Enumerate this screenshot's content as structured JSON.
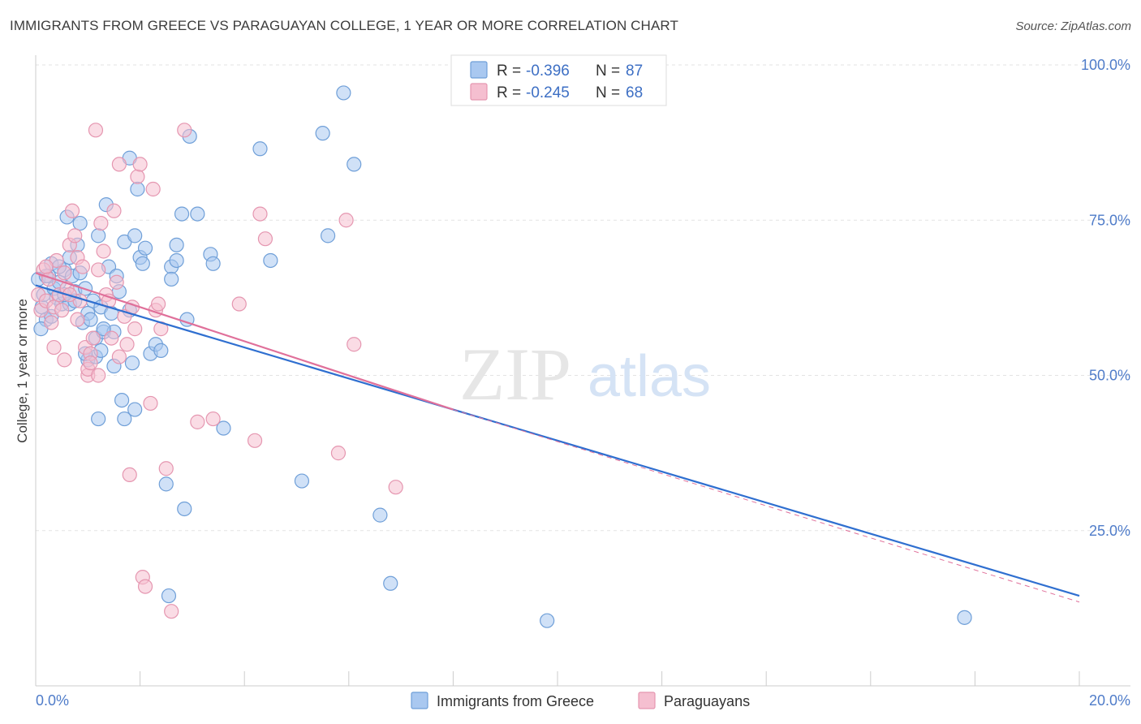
{
  "chart_data": {
    "type": "scatter",
    "title": "IMMIGRANTS FROM GREECE VS PARAGUAYAN COLLEGE, 1 YEAR OR MORE CORRELATION CHART",
    "source": "Source: ZipAtlas.com",
    "xlabel": "",
    "ylabel": "College, 1 year or more",
    "xlim": [
      0,
      20
    ],
    "ylim": [
      0,
      100
    ],
    "x_tick_labels": [
      "0.0%",
      "20.0%"
    ],
    "y_tick_labels": [
      "25.0%",
      "50.0%",
      "75.0%",
      "100.0%"
    ],
    "y_tick_values": [
      25,
      50,
      75,
      100
    ],
    "watermark": {
      "zip": "ZIP",
      "atlas": "atlas"
    },
    "legend": {
      "entries": [
        {
          "r_label": "R =",
          "r_value": "-0.396",
          "n_label": "N =",
          "n_value": "87"
        },
        {
          "r_label": "R =",
          "r_value": "-0.245",
          "n_label": "N =",
          "n_value": "68"
        }
      ]
    },
    "colors": {
      "blue_fill": "#a9c8f0",
      "blue_stroke": "#6f9fd8",
      "blue_line": "#2f6fd0",
      "pink_fill": "#f5bfd0",
      "pink_stroke": "#e596b0",
      "pink_line": "#e0709a",
      "value_text": "#3d6fc4",
      "grid": "#e3e3e3",
      "axis_label": "#4f7cc9"
    },
    "series": [
      {
        "name": "Immigrants from Greece",
        "trend": {
          "x0": 0,
          "y0": 64.5,
          "x1": 20,
          "y1": 14.5
        },
        "points": [
          [
            0.05,
            65.5
          ],
          [
            0.12,
            61
          ],
          [
            0.15,
            63
          ],
          [
            0.2,
            59
          ],
          [
            0.1,
            57.5
          ],
          [
            0.25,
            66
          ],
          [
            0.3,
            68
          ],
          [
            0.35,
            64
          ],
          [
            0.4,
            62.5
          ],
          [
            0.45,
            65
          ],
          [
            0.5,
            61.5
          ],
          [
            0.55,
            67
          ],
          [
            0.6,
            75.5
          ],
          [
            0.65,
            69
          ],
          [
            0.7,
            66
          ],
          [
            0.75,
            63.5
          ],
          [
            0.8,
            71
          ],
          [
            0.85,
            74.5
          ],
          [
            0.9,
            58.5
          ],
          [
            0.95,
            64
          ],
          [
            1.0,
            60
          ],
          [
            1.05,
            59
          ],
          [
            1.1,
            62
          ],
          [
            1.15,
            56
          ],
          [
            1.2,
            72.5
          ],
          [
            1.25,
            61
          ],
          [
            1.3,
            57
          ],
          [
            1.35,
            77.5
          ],
          [
            1.4,
            67.5
          ],
          [
            1.45,
            60
          ],
          [
            1.5,
            57
          ],
          [
            1.55,
            66
          ],
          [
            1.6,
            63.5
          ],
          [
            1.7,
            71.5
          ],
          [
            1.8,
            60.5
          ],
          [
            1.8,
            85
          ],
          [
            1.9,
            72.5
          ],
          [
            1.95,
            80
          ],
          [
            2.0,
            69
          ],
          [
            2.05,
            68
          ],
          [
            2.1,
            70.5
          ],
          [
            2.2,
            53.5
          ],
          [
            2.3,
            55
          ],
          [
            2.4,
            54
          ],
          [
            2.6,
            67.5
          ],
          [
            2.6,
            65.5
          ],
          [
            2.7,
            71
          ],
          [
            2.7,
            68.5
          ],
          [
            2.8,
            76
          ],
          [
            2.9,
            59
          ],
          [
            2.95,
            88.5
          ],
          [
            3.1,
            76
          ],
          [
            3.35,
            69.5
          ],
          [
            3.4,
            68
          ],
          [
            3.6,
            41.5
          ],
          [
            4.3,
            86.5
          ],
          [
            4.5,
            68.5
          ],
          [
            5.1,
            33
          ],
          [
            5.5,
            89
          ],
          [
            5.6,
            72.5
          ],
          [
            5.9,
            95.5
          ],
          [
            6.1,
            84
          ],
          [
            6.6,
            27.5
          ],
          [
            6.8,
            16.5
          ],
          [
            9.8,
            10.5
          ],
          [
            17.8,
            11
          ],
          [
            0.65,
            61.5
          ],
          [
            0.75,
            62
          ],
          [
            0.3,
            59.5
          ],
          [
            0.2,
            66
          ],
          [
            0.45,
            67.5
          ],
          [
            0.55,
            63
          ],
          [
            1.0,
            52.5
          ],
          [
            1.15,
            53
          ],
          [
            1.25,
            54
          ],
          [
            1.3,
            57.5
          ],
          [
            1.65,
            46
          ],
          [
            1.7,
            43
          ],
          [
            1.85,
            52
          ],
          [
            1.9,
            44.5
          ],
          [
            2.5,
            32.5
          ],
          [
            2.85,
            28.5
          ],
          [
            2.55,
            14.5
          ],
          [
            1.2,
            43
          ],
          [
            0.95,
            53.5
          ],
          [
            1.5,
            51.5
          ],
          [
            0.85,
            66.5
          ]
        ]
      },
      {
        "name": "Paraguayans",
        "trend": {
          "x0": 0,
          "y0": 66.5,
          "x1": 8,
          "y1": 44.5
        },
        "trend_dashed": {
          "x0": 8,
          "y0": 44.5,
          "x1": 20,
          "y1": 13.5
        },
        "points": [
          [
            0.05,
            63
          ],
          [
            0.1,
            60.5
          ],
          [
            0.15,
            67
          ],
          [
            0.2,
            62
          ],
          [
            0.25,
            65.5
          ],
          [
            0.3,
            58.5
          ],
          [
            0.35,
            61
          ],
          [
            0.4,
            68.5
          ],
          [
            0.45,
            63
          ],
          [
            0.5,
            60.5
          ],
          [
            0.55,
            66.5
          ],
          [
            0.6,
            64
          ],
          [
            0.65,
            71
          ],
          [
            0.7,
            76.5
          ],
          [
            0.75,
            72.5
          ],
          [
            0.8,
            69
          ],
          [
            0.85,
            62
          ],
          [
            0.9,
            67.5
          ],
          [
            0.95,
            54.5
          ],
          [
            1.0,
            50
          ],
          [
            1.05,
            53.5
          ],
          [
            1.1,
            56
          ],
          [
            1.15,
            89.5
          ],
          [
            1.2,
            67
          ],
          [
            1.25,
            74.5
          ],
          [
            1.3,
            70
          ],
          [
            1.35,
            63
          ],
          [
            1.4,
            62
          ],
          [
            1.45,
            56
          ],
          [
            1.5,
            76.5
          ],
          [
            1.55,
            65
          ],
          [
            1.6,
            84
          ],
          [
            1.7,
            59.5
          ],
          [
            1.75,
            55
          ],
          [
            1.8,
            34
          ],
          [
            1.85,
            61
          ],
          [
            1.9,
            57.5
          ],
          [
            1.95,
            82
          ],
          [
            2.0,
            84
          ],
          [
            2.05,
            17.5
          ],
          [
            2.1,
            16
          ],
          [
            2.2,
            45.5
          ],
          [
            2.25,
            80
          ],
          [
            2.3,
            60.5
          ],
          [
            2.35,
            61.5
          ],
          [
            2.4,
            57.5
          ],
          [
            2.5,
            35
          ],
          [
            2.6,
            12
          ],
          [
            2.85,
            89.5
          ],
          [
            3.1,
            42.5
          ],
          [
            3.4,
            43
          ],
          [
            3.9,
            61.5
          ],
          [
            4.2,
            39.5
          ],
          [
            4.3,
            76
          ],
          [
            4.4,
            72
          ],
          [
            5.8,
            37.5
          ],
          [
            5.95,
            75
          ],
          [
            6.1,
            55
          ],
          [
            6.9,
            32
          ],
          [
            0.2,
            67.5
          ],
          [
            0.35,
            54.5
          ],
          [
            0.55,
            52.5
          ],
          [
            0.65,
            63
          ],
          [
            1.0,
            51
          ],
          [
            1.05,
            52
          ],
          [
            1.2,
            50
          ],
          [
            1.6,
            53
          ],
          [
            0.8,
            59
          ]
        ]
      }
    ]
  }
}
